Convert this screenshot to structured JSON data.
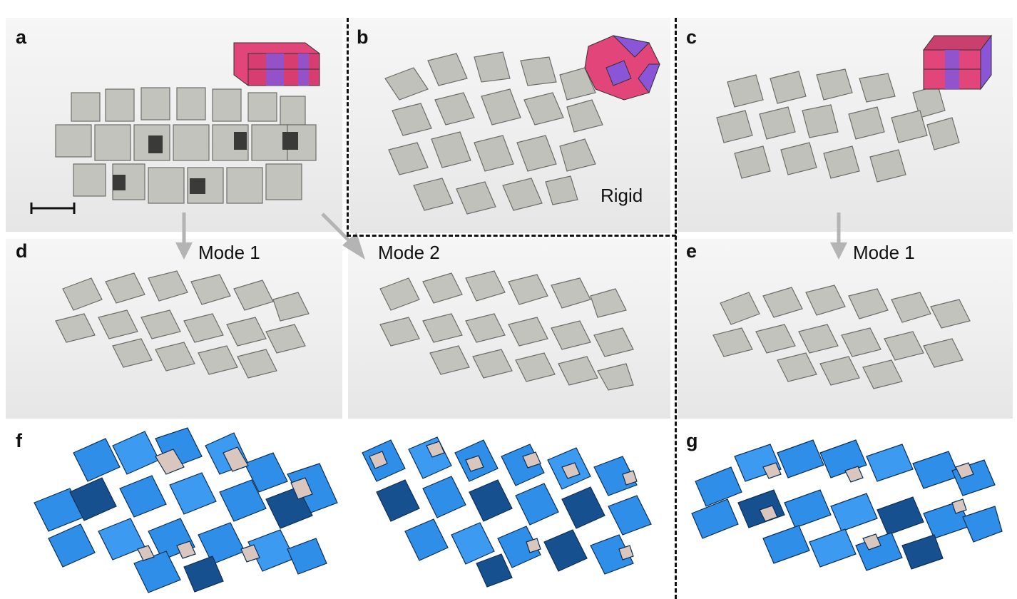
{
  "labels": {
    "a": "a",
    "b": "b",
    "c": "c",
    "d": "d",
    "e": "e",
    "f": "f",
    "g": "g"
  },
  "annotations": {
    "rigid": "Rigid",
    "mode1_left": "Mode 1",
    "mode2": "Mode 2",
    "mode1_right": "Mode 1"
  },
  "colors": {
    "paper": "#bdbdb8",
    "paper_dark": "#8f8f8a",
    "inset_pink": "#e2457a",
    "inset_purple": "#8a55d6",
    "render_blue": "#2f8ee8",
    "render_blue_dark": "#16508f",
    "render_beige": "#d9c7bf",
    "arrow_grey": "#b4b4b4"
  }
}
